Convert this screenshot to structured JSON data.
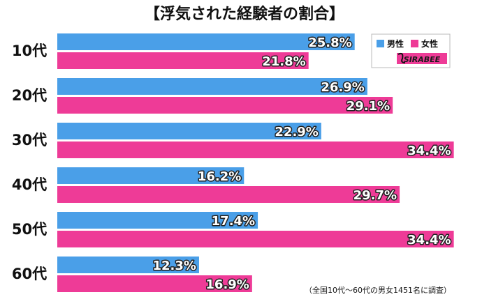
{
  "chart_data": {
    "type": "bar",
    "orientation": "horizontal",
    "title": "【浮気された経験者の割合】",
    "categories": [
      "10代",
      "20代",
      "30代",
      "40代",
      "50代",
      "60代"
    ],
    "series": [
      {
        "name": "男性",
        "color": "#4a9fe8",
        "values": [
          25.8,
          26.9,
          22.9,
          16.2,
          17.4,
          12.3
        ]
      },
      {
        "name": "女性",
        "color": "#ee3b97",
        "values": [
          21.8,
          29.1,
          34.4,
          29.7,
          34.4,
          16.9
        ]
      }
    ],
    "value_format": "percent_one_decimal",
    "xlim": [
      0,
      50
    ],
    "grid": false,
    "legend_position": "top-right",
    "note": "（全国10代～60代の男女1451名に調査）",
    "logo": "SIRABEE"
  }
}
